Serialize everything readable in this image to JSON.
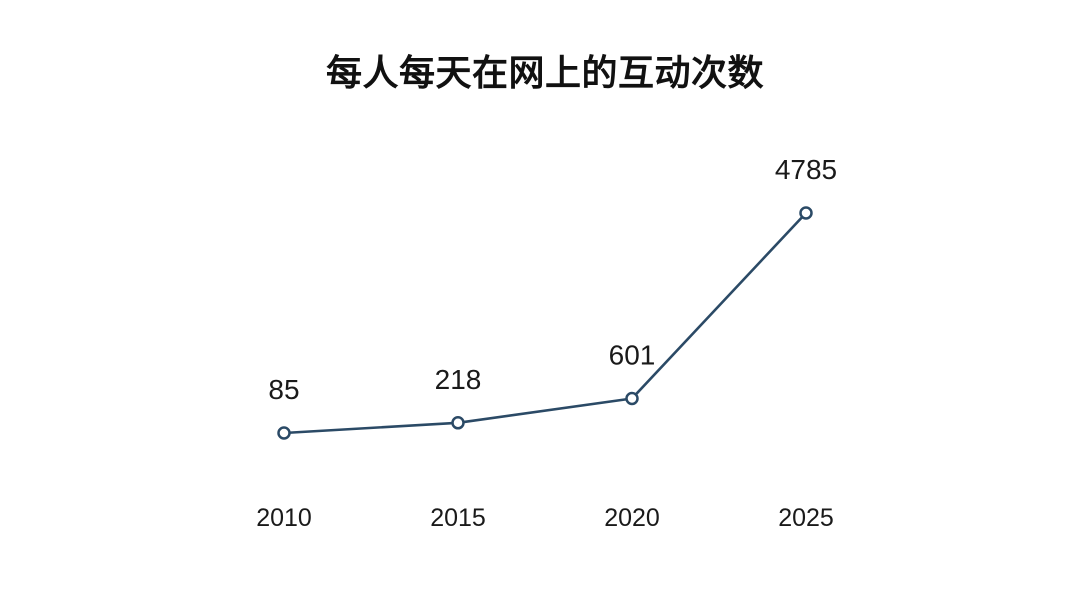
{
  "chart_data": {
    "type": "line",
    "title": "每人每天在网上的互动次数",
    "categories": [
      "2010",
      "2015",
      "2020",
      "2025"
    ],
    "values": [
      85,
      218,
      601,
      4785
    ],
    "data_labels": [
      "85",
      "218",
      "601",
      "4785"
    ],
    "xlabel": "",
    "ylabel": "",
    "grid": false,
    "legend": "none",
    "marker": "hollow-circle",
    "colors": {
      "line": "#2b4a66",
      "marker_stroke": "#2b4a66",
      "marker_fill": "#ffffff",
      "label_text": "#1a1a1a",
      "title_text": "#111111",
      "background": "#ffffff"
    }
  }
}
